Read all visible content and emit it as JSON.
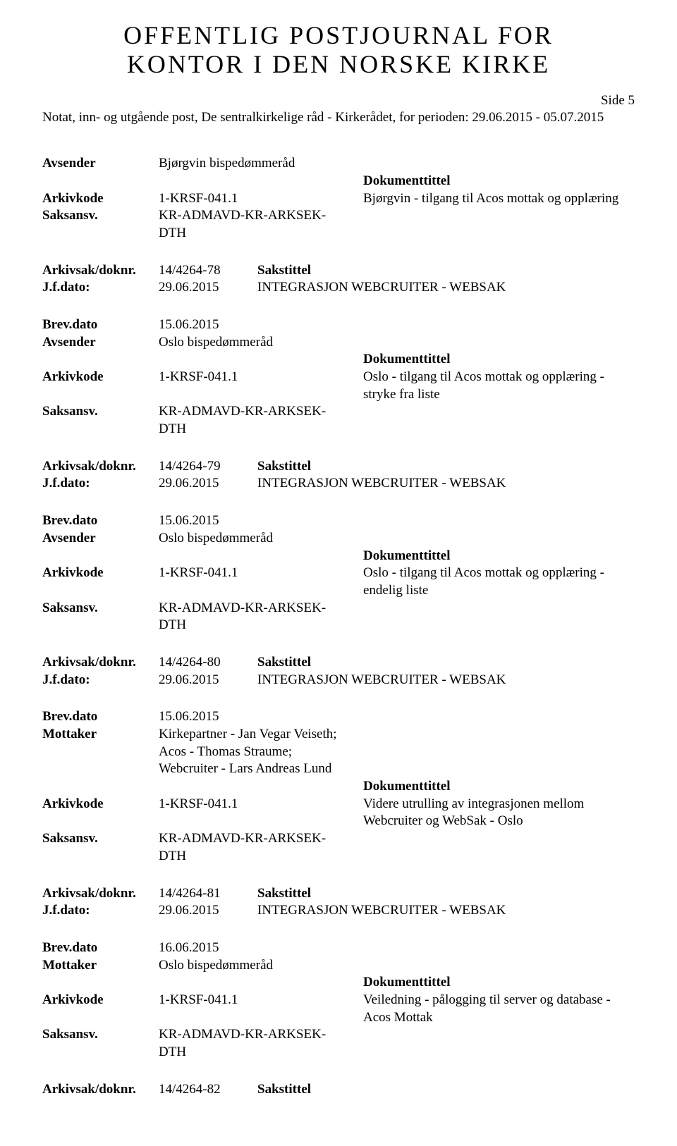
{
  "header": {
    "title_line1": "OFFENTLIG POSTJOURNAL FOR",
    "title_line2": "KONTOR I DEN NORSKE KIRKE",
    "side_label": "Side 5",
    "subtitle": "Notat, inn- og utgående post, De sentralkirkelige råd - Kirkerådet, for perioden: 29.06.2015 - 05.07.2015"
  },
  "labels": {
    "avsender": "Avsender",
    "mottaker": "Mottaker",
    "arkivkode": "Arkivkode",
    "saksansv": "Saksansv.",
    "dokumenttittel": "Dokumenttittel",
    "arkivsak": "Arkivsak/doknr.",
    "jfdato": "J.f.dato:",
    "sakstittel": "Sakstittel",
    "brevdato": "Brev.dato"
  },
  "records": [
    {
      "type": "sender",
      "sender_label": "Avsender",
      "sender": "Bjørgvin bispedømmeråd",
      "arkivkode": "1-KRSF-041.1",
      "saksansv": "KR-ADMAVD-KR-ARKSEK-DTH",
      "doc_title": "Bjørgvin - tilgang til Acos mottak og opplæring"
    },
    {
      "type": "arkivsak",
      "doknr": "14/4264-78",
      "jfdato": "29.06.2015",
      "sakstittel": "INTEGRASJON WEBCRUITER - WEBSAK"
    },
    {
      "type": "brev",
      "brev_dato": "15.06.2015",
      "sender_label": "Avsender",
      "sender": "Oslo bispedømmeråd",
      "arkivkode": "1-KRSF-041.1",
      "saksansv": "KR-ADMAVD-KR-ARKSEK-DTH",
      "doc_title": "Oslo - tilgang til Acos mottak og opplæring - stryke fra liste"
    },
    {
      "type": "arkivsak",
      "doknr": "14/4264-79",
      "jfdato": "29.06.2015",
      "sakstittel": "INTEGRASJON WEBCRUITER - WEBSAK"
    },
    {
      "type": "brev",
      "brev_dato": "15.06.2015",
      "sender_label": "Avsender",
      "sender": "Oslo bispedømmeråd",
      "arkivkode": "1-KRSF-041.1",
      "saksansv": "KR-ADMAVD-KR-ARKSEK-DTH",
      "doc_title": "Oslo - tilgang til Acos mottak og opplæring - endelig liste"
    },
    {
      "type": "arkivsak",
      "doknr": "14/4264-80",
      "jfdato": "29.06.2015",
      "sakstittel": "INTEGRASJON WEBCRUITER - WEBSAK"
    },
    {
      "type": "brev",
      "brev_dato": "15.06.2015",
      "sender_label": "Mottaker",
      "sender": "Kirkepartner - Jan Vegar Veiseth;\nAcos - Thomas Straume;\nWebcruiter - Lars Andreas Lund",
      "arkivkode": "1-KRSF-041.1",
      "saksansv": "KR-ADMAVD-KR-ARKSEK-DTH",
      "doc_title": "Videre utrulling av integrasjonen mellom Webcruiter og WebSak - Oslo"
    },
    {
      "type": "arkivsak",
      "doknr": "14/4264-81",
      "jfdato": "29.06.2015",
      "sakstittel": "INTEGRASJON WEBCRUITER - WEBSAK"
    },
    {
      "type": "brev",
      "brev_dato": "16.06.2015",
      "sender_label": "Mottaker",
      "sender": "Oslo bispedømmeråd",
      "arkivkode": "1-KRSF-041.1",
      "saksansv": "KR-ADMAVD-KR-ARKSEK-DTH",
      "doc_title": "Veiledning - pålogging til server og database - Acos Mottak"
    },
    {
      "type": "arkivsak_short",
      "doknr": "14/4264-82"
    }
  ]
}
